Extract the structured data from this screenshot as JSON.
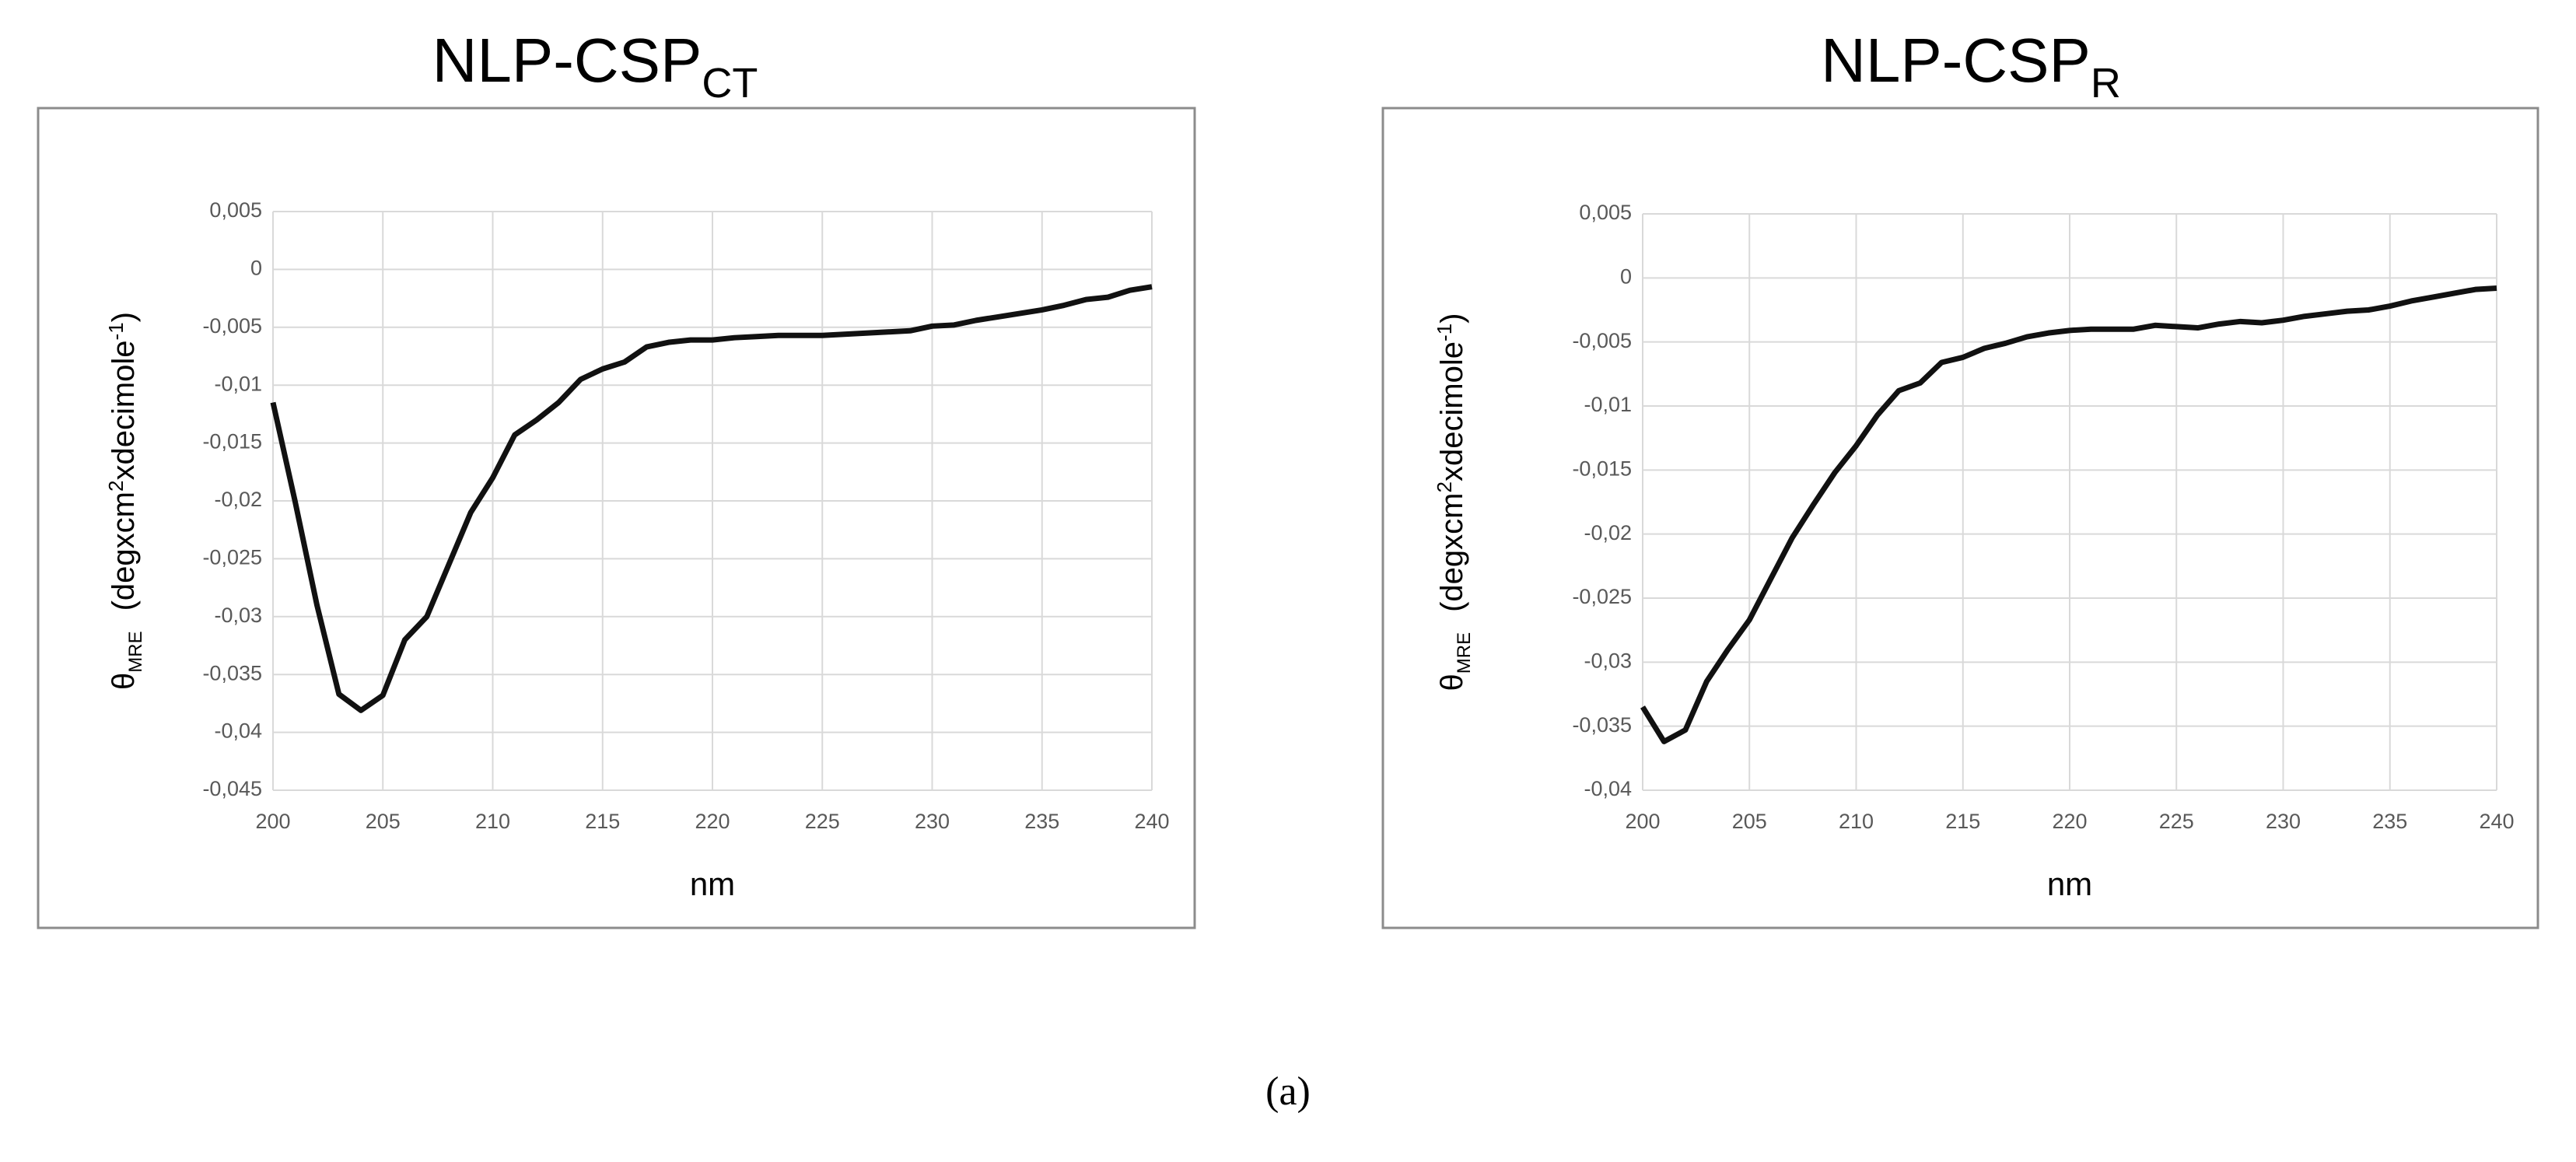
{
  "chart_data": [
    {
      "type": "line",
      "title": "NLP-CSP",
      "title_subscript": "CT",
      "ylabel_parts": [
        "θ",
        "MRE",
        "(degxcm",
        "2",
        "xdecimole",
        "-1",
        ")"
      ],
      "xlabel": "nm",
      "color": "#111111",
      "grid": true,
      "x": [
        200,
        201,
        202,
        203,
        204,
        205,
        206,
        207,
        208,
        209,
        210,
        211,
        212,
        213,
        214,
        215,
        216,
        217,
        218,
        219,
        220,
        221,
        222,
        223,
        224,
        225,
        226,
        227,
        228,
        229,
        230,
        231,
        232,
        233,
        234,
        235,
        236,
        237,
        238,
        239,
        240
      ],
      "values": [
        -0.0115,
        -0.02,
        -0.029,
        -0.0367,
        -0.0381,
        -0.0368,
        -0.032,
        -0.03,
        -0.0255,
        -0.021,
        -0.018,
        -0.0143,
        -0.013,
        -0.0115,
        -0.0095,
        -0.0086,
        -0.008,
        -0.0067,
        -0.0063,
        -0.0061,
        -0.0061,
        -0.0059,
        -0.0058,
        -0.0057,
        -0.0057,
        -0.0057,
        -0.0056,
        -0.0055,
        -0.0054,
        -0.0053,
        -0.0049,
        -0.0048,
        -0.0044,
        -0.0041,
        -0.0038,
        -0.0035,
        -0.0031,
        -0.0026,
        -0.0024,
        -0.0018,
        -0.0015
      ],
      "xlim": [
        200,
        240
      ],
      "xticks": [
        200,
        205,
        210,
        215,
        220,
        225,
        230,
        235,
        240
      ],
      "ylim": [
        -0.045,
        0.005
      ],
      "yticks": [
        {
          "value": -0.045,
          "label": "-0,045"
        },
        {
          "value": -0.04,
          "label": "-0,04"
        },
        {
          "value": -0.035,
          "label": "-0,035"
        },
        {
          "value": -0.03,
          "label": "-0,03"
        },
        {
          "value": -0.025,
          "label": "-0,025"
        },
        {
          "value": -0.02,
          "label": "-0,02"
        },
        {
          "value": -0.015,
          "label": "-0,015"
        },
        {
          "value": -0.01,
          "label": "-0,01"
        },
        {
          "value": -0.005,
          "label": "-0,005"
        },
        0,
        {
          "value": 0.005,
          "label": "0,005"
        }
      ]
    },
    {
      "type": "line",
      "title": "NLP-CSP",
      "title_subscript": "R",
      "ylabel_parts": [
        "θ",
        "MRE",
        "(degxcm",
        "2",
        "xdecimole",
        "-1",
        ")"
      ],
      "xlabel": "nm",
      "color": "#111111",
      "grid": true,
      "x": [
        200,
        201,
        202,
        203,
        204,
        205,
        206,
        207,
        208,
        209,
        210,
        211,
        212,
        213,
        214,
        215,
        216,
        217,
        218,
        219,
        220,
        221,
        222,
        223,
        224,
        225,
        226,
        227,
        228,
        229,
        230,
        231,
        232,
        233,
        234,
        235,
        236,
        237,
        238,
        239,
        240
      ],
      "values": [
        -0.0335,
        -0.0362,
        -0.0353,
        -0.0315,
        -0.029,
        -0.0267,
        -0.0235,
        -0.0203,
        -0.0177,
        -0.0152,
        -0.0131,
        -0.0107,
        -0.0088,
        -0.0082,
        -0.0066,
        -0.0062,
        -0.0055,
        -0.0051,
        -0.0046,
        -0.0043,
        -0.0041,
        -0.004,
        -0.004,
        -0.004,
        -0.0037,
        -0.0038,
        -0.0039,
        -0.0036,
        -0.0034,
        -0.0035,
        -0.0033,
        -0.003,
        -0.0028,
        -0.0026,
        -0.0025,
        -0.0022,
        -0.0018,
        -0.0015,
        -0.0012,
        -0.0009,
        -0.0008
      ],
      "xlim": [
        200,
        240
      ],
      "xticks": [
        200,
        205,
        210,
        215,
        220,
        225,
        230,
        235,
        240
      ],
      "ylim": [
        -0.04,
        0.005
      ],
      "yticks": [
        {
          "value": -0.04,
          "label": "-0,04"
        },
        {
          "value": -0.035,
          "label": "-0,035"
        },
        {
          "value": -0.03,
          "label": "-0,03"
        },
        {
          "value": -0.025,
          "label": "-0,025"
        },
        {
          "value": -0.02,
          "label": "-0,02"
        },
        {
          "value": -0.015,
          "label": "-0,015"
        },
        {
          "value": -0.01,
          "label": "-0,01"
        },
        {
          "value": -0.005,
          "label": "-0,005"
        },
        0,
        {
          "value": 0.005,
          "label": "0,005"
        }
      ]
    }
  ],
  "caption": "(a)"
}
